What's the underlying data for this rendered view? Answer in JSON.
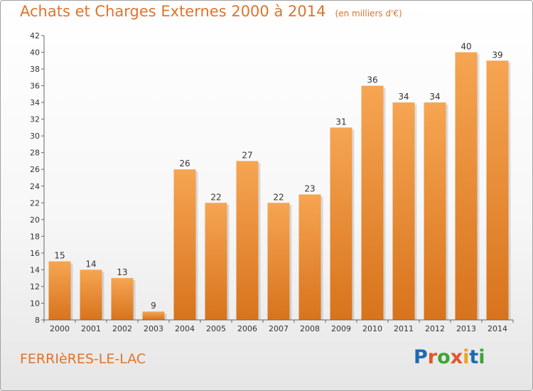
{
  "header": {
    "title": "Achats et Charges Externes 2000 à 2014",
    "subtitle": "(en milliers d'€)"
  },
  "footer": {
    "place": "FERRIèRES-LE-LAC",
    "logo_text": "Proxiti",
    "logo_colors": [
      "#1c6bb0",
      "#e2562a",
      "#3da535",
      "#e2562a",
      "#f0a020",
      "#1c6bb0",
      "#3da535"
    ]
  },
  "colors": {
    "title": "#e0732a",
    "bar_top": "#f6a552",
    "bar_bottom": "#d8731c"
  },
  "chart_data": {
    "type": "bar",
    "title": "Achats et Charges Externes 2000 à 2014",
    "subtitle": "(en milliers d'€)",
    "xlabel": "",
    "ylabel": "",
    "categories": [
      "2000",
      "2001",
      "2002",
      "2003",
      "2004",
      "2005",
      "2006",
      "2007",
      "2008",
      "2009",
      "2010",
      "2011",
      "2012",
      "2013",
      "2014"
    ],
    "values": [
      15,
      14,
      13,
      9,
      26,
      22,
      27,
      22,
      23,
      31,
      36,
      34,
      34,
      40,
      39
    ],
    "ylim": [
      8,
      42
    ],
    "yticks": [
      8,
      10,
      12,
      14,
      16,
      18,
      20,
      22,
      24,
      26,
      28,
      30,
      32,
      34,
      36,
      38,
      40,
      42
    ],
    "grid": false,
    "legend": "none"
  }
}
